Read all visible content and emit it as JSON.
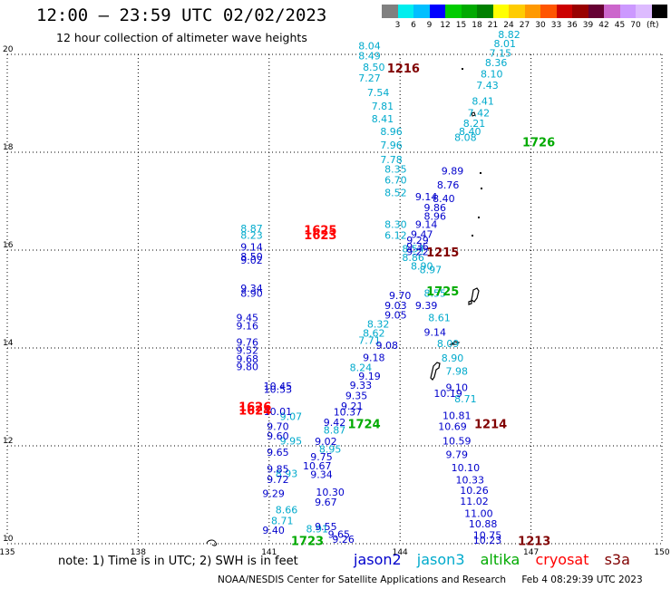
{
  "title": "12:00 – 23:59 UTC 02/02/2023",
  "subtitle": "12 hour collection of altimeter wave heights",
  "colorbar": {
    "colors": [
      "#808080",
      "#00eeee",
      "#00bfff",
      "#0000ff",
      "#00cc00",
      "#00aa00",
      "#008000",
      "#ffff00",
      "#ffcc00",
      "#ff9900",
      "#ff5500",
      "#cc0000",
      "#990000",
      "#660033",
      "#cc66cc",
      "#cc99ff",
      "#ddbbff",
      "#000000"
    ],
    "labels": [
      "3",
      "6",
      "9",
      "12",
      "15",
      "18",
      "21",
      "24",
      "27",
      "30",
      "33",
      "36",
      "39",
      "42",
      "45",
      "70"
    ],
    "unit": "(ft)"
  },
  "axes": {
    "x_ticks": [
      "135",
      "138",
      "141",
      "144",
      "147",
      "150"
    ],
    "y_ticks": [
      "20",
      "18",
      "16",
      "14",
      "12",
      "10"
    ]
  },
  "colors": {
    "jason2": "#0000cc",
    "jason3": "#00aacc",
    "altika": "#00aa00",
    "cryosat": "#ff0000",
    "s3a": "#800000"
  },
  "chart_data": {
    "type": "scatter",
    "xlim": [
      135,
      150
    ],
    "ylim": [
      10,
      20
    ],
    "x_unit": "longitude (deg E)",
    "y_unit": "latitude (deg N)",
    "tracks": [
      {
        "sat": "jason3",
        "points": [
          {
            "lon": 141.5,
            "lat": 12.53,
            "v": "9.07"
          },
          {
            "lon": 141.5,
            "lat": 12.03,
            "v": "9.95"
          },
          {
            "lon": 141.4,
            "lat": 11.36,
            "v": "8.93"
          },
          {
            "lon": 141.4,
            "lat": 10.62,
            "v": "8.66"
          },
          {
            "lon": 141.3,
            "lat": 10.4,
            "v": "8.71"
          },
          {
            "lon": 142.1,
            "lat": 10.23,
            "v": "8.91"
          },
          {
            "lon": 142.4,
            "lat": 11.86,
            "v": "8.95"
          },
          {
            "lon": 142.5,
            "lat": 12.25,
            "v": "8.87"
          },
          {
            "lon": 143.1,
            "lat": 13.53,
            "v": "8.24"
          },
          {
            "lon": 143.3,
            "lat": 14.08,
            "v": "7.71"
          },
          {
            "lon": 143.4,
            "lat": 14.23,
            "v": "8.62"
          },
          {
            "lon": 143.5,
            "lat": 14.42,
            "v": "8.32"
          },
          {
            "lon": 143.9,
            "lat": 16.23,
            "v": "6.12"
          },
          {
            "lon": 143.9,
            "lat": 16.45,
            "v": "8.30"
          },
          {
            "lon": 143.9,
            "lat": 17.1,
            "v": "8.52"
          },
          {
            "lon": 143.9,
            "lat": 17.36,
            "v": "6.70"
          },
          {
            "lon": 143.9,
            "lat": 17.58,
            "v": "8.35"
          },
          {
            "lon": 143.8,
            "lat": 17.78,
            "v": "7.78"
          },
          {
            "lon": 143.8,
            "lat": 18.07,
            "v": "7.96"
          },
          {
            "lon": 143.8,
            "lat": 18.35,
            "v": "8.96"
          },
          {
            "lon": 143.6,
            "lat": 18.61,
            "v": "8.41"
          },
          {
            "lon": 143.6,
            "lat": 18.87,
            "v": "7.81"
          },
          {
            "lon": 143.5,
            "lat": 19.15,
            "v": "7.54"
          },
          {
            "lon": 143.3,
            "lat": 19.44,
            "v": "7.27"
          },
          {
            "lon": 143.4,
            "lat": 19.67,
            "v": "8.50"
          },
          {
            "lon": 143.3,
            "lat": 19.9,
            "v": "8.49"
          },
          {
            "lon": 143.3,
            "lat": 20.1,
            "v": "8.04"
          },
          {
            "lon": 144.3,
            "lat": 15.95,
            "v": "8.54"
          },
          {
            "lon": 144.3,
            "lat": 15.78,
            "v": "8.86"
          },
          {
            "lon": 144.5,
            "lat": 15.6,
            "v": "8.90"
          },
          {
            "lon": 144.7,
            "lat": 15.53,
            "v": "8.97"
          },
          {
            "lon": 144.8,
            "lat": 15.05,
            "v": "8.55"
          },
          {
            "lon": 144.9,
            "lat": 14.55,
            "v": "8.61"
          },
          {
            "lon": 145.1,
            "lat": 14.02,
            "v": "8.09"
          },
          {
            "lon": 145.2,
            "lat": 13.72,
            "v": "8.90"
          },
          {
            "lon": 145.3,
            "lat": 13.45,
            "v": "7.98"
          },
          {
            "lon": 145.5,
            "lat": 12.89,
            "v": "8.71"
          },
          {
            "lon": 145.5,
            "lat": 18.23,
            "v": "8.08"
          },
          {
            "lon": 145.6,
            "lat": 18.35,
            "v": "8.40"
          },
          {
            "lon": 145.7,
            "lat": 18.52,
            "v": "8.21"
          },
          {
            "lon": 145.8,
            "lat": 18.73,
            "v": "7.42"
          },
          {
            "lon": 145.9,
            "lat": 18.97,
            "v": "8.41"
          },
          {
            "lon": 146.0,
            "lat": 19.3,
            "v": "7.43"
          },
          {
            "lon": 146.1,
            "lat": 19.53,
            "v": "8.10"
          },
          {
            "lon": 146.2,
            "lat": 19.76,
            "v": "8.36"
          },
          {
            "lon": 146.3,
            "lat": 19.95,
            "v": "7.15"
          },
          {
            "lon": 146.4,
            "lat": 20.15,
            "v": "8.01"
          },
          {
            "lon": 146.5,
            "lat": 20.33,
            "v": "8.82"
          },
          {
            "lon": 140.6,
            "lat": 16.37,
            "v": "8.87"
          },
          {
            "lon": 140.6,
            "lat": 16.23,
            "v": "8.23"
          }
        ]
      },
      {
        "sat": "jason2",
        "points": [
          {
            "lon": 140.6,
            "lat": 15.99,
            "v": "9.14"
          },
          {
            "lon": 140.6,
            "lat": 15.8,
            "v": "8.50"
          },
          {
            "lon": 140.6,
            "lat": 15.72,
            "v": "9.02"
          },
          {
            "lon": 140.6,
            "lat": 15.15,
            "v": "9.34"
          },
          {
            "lon": 140.6,
            "lat": 15.05,
            "v": "8.90"
          },
          {
            "lon": 140.5,
            "lat": 14.55,
            "v": "9.45"
          },
          {
            "lon": 140.5,
            "lat": 14.38,
            "v": "9.16"
          },
          {
            "lon": 140.5,
            "lat": 14.05,
            "v": "9.76"
          },
          {
            "lon": 140.5,
            "lat": 13.88,
            "v": "9.52"
          },
          {
            "lon": 140.5,
            "lat": 13.7,
            "v": "9.68"
          },
          {
            "lon": 140.5,
            "lat": 13.55,
            "v": "9.80"
          },
          {
            "lon": 141.2,
            "lat": 13.15,
            "v": "10.45"
          },
          {
            "lon": 141.2,
            "lat": 13.08,
            "v": "10.53"
          },
          {
            "lon": 141.2,
            "lat": 12.63,
            "v": "10.01"
          },
          {
            "lon": 141.2,
            "lat": 12.32,
            "v": "9.70"
          },
          {
            "lon": 141.2,
            "lat": 12.13,
            "v": "9.60"
          },
          {
            "lon": 141.2,
            "lat": 11.8,
            "v": "9.65"
          },
          {
            "lon": 141.2,
            "lat": 11.45,
            "v": "9.85"
          },
          {
            "lon": 141.2,
            "lat": 11.24,
            "v": "9.72"
          },
          {
            "lon": 141.1,
            "lat": 10.95,
            "v": "9.29"
          },
          {
            "lon": 141.1,
            "lat": 10.2,
            "v": "9.40"
          },
          {
            "lon": 142.7,
            "lat": 10.02,
            "v": "9.26"
          },
          {
            "lon": 142.6,
            "lat": 10.12,
            "v": "9.65"
          },
          {
            "lon": 142.3,
            "lat": 10.28,
            "v": "9.55"
          },
          {
            "lon": 142.3,
            "lat": 10.78,
            "v": "9.67"
          },
          {
            "lon": 142.4,
            "lat": 10.98,
            "v": "10.30"
          },
          {
            "lon": 142.2,
            "lat": 11.34,
            "v": "9.34"
          },
          {
            "lon": 142.1,
            "lat": 11.52,
            "v": "10.67"
          },
          {
            "lon": 142.2,
            "lat": 11.7,
            "v": "9.75"
          },
          {
            "lon": 142.3,
            "lat": 12.02,
            "v": "9.02"
          },
          {
            "lon": 142.5,
            "lat": 12.41,
            "v": "9.42"
          },
          {
            "lon": 142.8,
            "lat": 12.62,
            "v": "10.37"
          },
          {
            "lon": 142.9,
            "lat": 12.74,
            "v": "9.21"
          },
          {
            "lon": 143.0,
            "lat": 12.95,
            "v": "9.35"
          },
          {
            "lon": 143.1,
            "lat": 13.17,
            "v": "9.33"
          },
          {
            "lon": 143.3,
            "lat": 13.35,
            "v": "9.19"
          },
          {
            "lon": 143.4,
            "lat": 13.73,
            "v": "9.18"
          },
          {
            "lon": 143.7,
            "lat": 13.98,
            "v": "9.08"
          },
          {
            "lon": 143.9,
            "lat": 14.6,
            "v": "9.05"
          },
          {
            "lon": 143.9,
            "lat": 14.8,
            "v": "9.03"
          },
          {
            "lon": 144.0,
            "lat": 15.0,
            "v": "9.70"
          },
          {
            "lon": 144.4,
            "lat": 15.9,
            "v": "9.22"
          },
          {
            "lon": 144.4,
            "lat": 16.0,
            "v": "9.36"
          },
          {
            "lon": 144.4,
            "lat": 16.13,
            "v": "9.29"
          },
          {
            "lon": 144.5,
            "lat": 16.25,
            "v": "9.47"
          },
          {
            "lon": 144.6,
            "lat": 16.45,
            "v": "9.14"
          },
          {
            "lon": 144.8,
            "lat": 16.62,
            "v": "8.96"
          },
          {
            "lon": 144.8,
            "lat": 16.8,
            "v": "9.86"
          },
          {
            "lon": 145.0,
            "lat": 16.98,
            "v": "8.40"
          },
          {
            "lon": 145.1,
            "lat": 17.26,
            "v": "8.76"
          },
          {
            "lon": 145.2,
            "lat": 17.55,
            "v": "9.89"
          },
          {
            "lon": 144.6,
            "lat": 17.02,
            "v": "9.14"
          },
          {
            "lon": 144.6,
            "lat": 14.8,
            "v": "9.39"
          },
          {
            "lon": 144.8,
            "lat": 14.25,
            "v": "9.14"
          },
          {
            "lon": 145.1,
            "lat": 13.0,
            "v": "10.19"
          },
          {
            "lon": 145.2,
            "lat": 12.32,
            "v": "10.69"
          },
          {
            "lon": 145.3,
            "lat": 12.55,
            "v": "10.81"
          },
          {
            "lon": 145.3,
            "lat": 12.03,
            "v": "10.59"
          },
          {
            "lon": 145.3,
            "lat": 11.75,
            "v": "9.79"
          },
          {
            "lon": 145.5,
            "lat": 11.48,
            "v": "10.10"
          },
          {
            "lon": 145.6,
            "lat": 11.23,
            "v": "10.33"
          },
          {
            "lon": 145.7,
            "lat": 11.02,
            "v": "10.26"
          },
          {
            "lon": 145.7,
            "lat": 10.8,
            "v": "11.02"
          },
          {
            "lon": 145.8,
            "lat": 10.55,
            "v": "11.00"
          },
          {
            "lon": 145.9,
            "lat": 10.33,
            "v": "10.88"
          },
          {
            "lon": 146.0,
            "lat": 10.1,
            "v": "10.75"
          },
          {
            "lon": 146.0,
            "lat": 10.0,
            "v": "10.23"
          },
          {
            "lon": 145.3,
            "lat": 13.12,
            "v": "9.10"
          }
        ]
      }
    ],
    "time_labels": [
      {
        "text": "1216",
        "lon": 143.7,
        "lat": 19.63,
        "sat": "s3a"
      },
      {
        "text": "1726",
        "lon": 146.8,
        "lat": 18.12,
        "sat": "altika"
      },
      {
        "text": "1625",
        "lon": 141.8,
        "lat": 16.32,
        "sat": "cryosat"
      },
      {
        "text": "1623",
        "lon": 141.8,
        "lat": 16.22,
        "sat": "cryosat"
      },
      {
        "text": "1215",
        "lon": 144.6,
        "lat": 15.87,
        "sat": "s3a"
      },
      {
        "text": "1725",
        "lon": 144.6,
        "lat": 15.07,
        "sat": "altika"
      },
      {
        "text": "1626",
        "lon": 140.3,
        "lat": 12.71,
        "sat": "cryosat"
      },
      {
        "text": "1624",
        "lon": 140.3,
        "lat": 12.64,
        "sat": "cryosat"
      },
      {
        "text": "1724",
        "lon": 142.8,
        "lat": 12.36,
        "sat": "altika"
      },
      {
        "text": "1214",
        "lon": 145.7,
        "lat": 12.36,
        "sat": "s3a"
      },
      {
        "text": "1723",
        "lon": 141.5,
        "lat": 9.97,
        "sat": "altika"
      },
      {
        "text": "1213",
        "lon": 146.7,
        "lat": 9.97,
        "sat": "s3a"
      }
    ]
  },
  "legend": {
    "note": "note: 1) Time is in UTC; 2) SWH is in feet",
    "sats": [
      {
        "key": "jason2",
        "label": "jason2"
      },
      {
        "key": "jason3",
        "label": "jason3"
      },
      {
        "key": "altika",
        "label": "altika"
      },
      {
        "key": "cryosat",
        "label": "cryosat"
      },
      {
        "key": "s3a",
        "label": "s3a"
      }
    ]
  },
  "footer": {
    "center": "NOAA/NESDIS Center for Satellite Applications and Research",
    "date": "Feb  4 08:29:39 UTC 2023"
  }
}
